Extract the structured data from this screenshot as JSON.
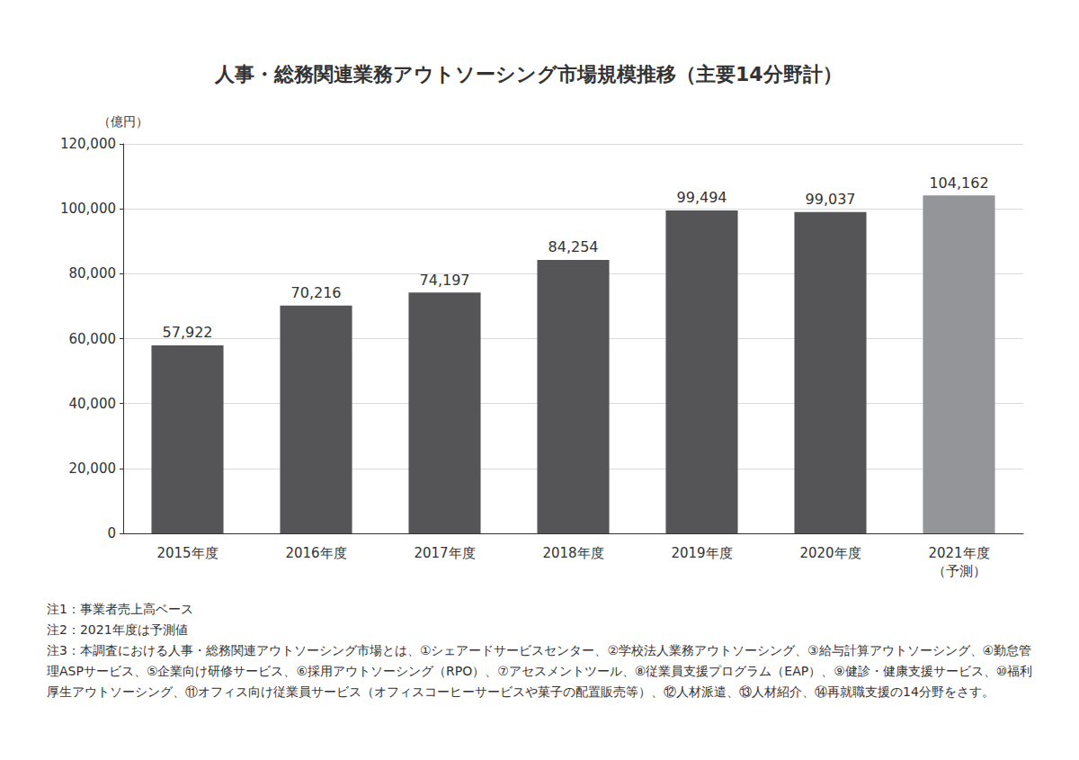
{
  "chart_data": {
    "type": "bar",
    "title": "人事・総務関連業務アウトソーシング市場規模推移（主要14分野計）",
    "y_label": "（億円）",
    "categories": [
      "2015年度",
      "2016年度",
      "2017年度",
      "2018年度",
      "2019年度",
      "2020年度",
      "2021年度\n（予測）"
    ],
    "values": [
      57922,
      70216,
      74197,
      84254,
      99494,
      99037,
      104162
    ],
    "value_labels": [
      "57,922",
      "70,216",
      "74,197",
      "84,254",
      "99,494",
      "99,037",
      "104,162"
    ],
    "colors": [
      "#555558",
      "#555558",
      "#555558",
      "#555558",
      "#555558",
      "#555558",
      "#939598"
    ],
    "data_labels": true,
    "ylim": [
      0,
      120000
    ],
    "yticks": [
      0,
      {
        "value": 20000,
        "label": "20,000"
      },
      {
        "value": 40000,
        "label": "40,000"
      },
      {
        "value": 60000,
        "label": "60,000"
      },
      {
        "value": 80000,
        "label": "80,000"
      },
      {
        "value": 100000,
        "label": "100,000"
      },
      {
        "value": 120000,
        "label": "120,000"
      }
    ],
    "grid": true,
    "annotations": [
      "注1：事業者売上高ベース",
      "注2：2021年度は予測値",
      "注3：本調査における人事・総務関連アウトソーシング市場とは、①シェアードサービスセンター、②学校法人業務アウトソーシング、③給与計算アウトソーシング、④勤怠管理ASPサービス、⑤企業向け研修サービス、⑥採用アウトソーシング（RPO）、⑦アセスメントツール、⑧従業員支援プログラム（EAP）、⑨健診・健康支援サービス、⑩福利厚生アウトソーシング、⑪オフィス向け従業員サービス（オフィスコーヒーサービスや菓子の配置販売等）、⑫人材派遣、⑬人材紹介、⑭再就職支援の14分野をさす。"
    ]
  }
}
